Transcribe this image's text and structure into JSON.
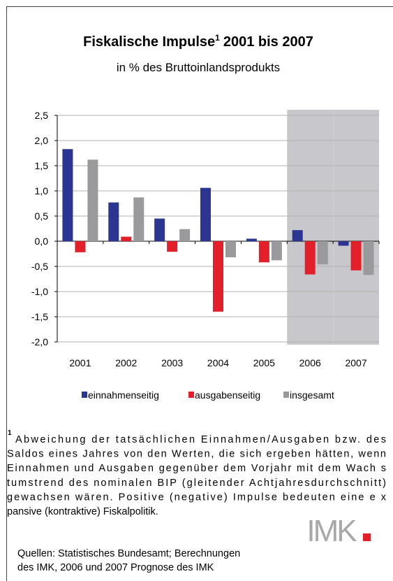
{
  "chart_data": {
    "type": "bar",
    "title": "Fiskalische Impulse",
    "title_footnote_mark": "1",
    "title_suffix": "2001 bis 2007",
    "subtitle": "in % des Bruttoinlandsprodukts",
    "categories": [
      "2001",
      "2002",
      "2003",
      "2004",
      "2005",
      "2006",
      "2007"
    ],
    "shaded": [
      false,
      false,
      false,
      false,
      false,
      true,
      true
    ],
    "series": [
      {
        "name": "einnahmenseitig",
        "color": "#2b3592",
        "values": [
          1.83,
          0.77,
          0.45,
          1.06,
          0.05,
          0.22,
          -0.09
        ]
      },
      {
        "name": "ausgabenseitig",
        "color": "#e3202a",
        "values": [
          -0.22,
          0.09,
          -0.21,
          -1.4,
          -0.42,
          -0.66,
          -0.58
        ]
      },
      {
        "name": "insgesamt",
        "color": "#9a9a9c",
        "values": [
          1.62,
          0.87,
          0.24,
          -0.32,
          -0.38,
          -0.46,
          -0.67
        ]
      }
    ],
    "ylim": [
      -2.0,
      2.5
    ],
    "yticks": [
      {
        "value": 2.5,
        "label": "2,5"
      },
      {
        "value": 2.0,
        "label": "2,0"
      },
      {
        "value": 1.5,
        "label": "1,5"
      },
      {
        "value": 1.0,
        "label": "1,0"
      },
      {
        "value": 0.5,
        "label": "0,5"
      },
      {
        "value": 0.0,
        "label": "0,0"
      },
      {
        "value": -0.5,
        "label": "-0,5"
      },
      {
        "value": -1.0,
        "label": "-1,0"
      },
      {
        "value": -1.5,
        "label": "-1,5"
      },
      {
        "value": -2.0,
        "label": "-2,0"
      }
    ],
    "grid": true,
    "legend": "bottom"
  },
  "footnote": {
    "mark": "1",
    "lines": [
      "Abweichung der tatsächlichen Einnahmen/Ausgaben bzw. des",
      "Saldos eines Jahres von den Werten, die sich ergeben hätten, wenn",
      "Einnahmen und Ausgaben gegenüber dem Vorjahr mit dem Wach s",
      "tumstrend des nominalen BIP (gleitender Achtjahresdurchschnitt)",
      "gewachsen wären. Positive (negative) Impulse bedeuten eine e x",
      "pansive (kontraktive) Fiskalpolitik."
    ]
  },
  "source": {
    "lines": [
      "Quellen: Statistisches Bundesamt; Berechnungen",
      "des IMK, 2006 und 2007 Prognose des IMK"
    ]
  },
  "logo": {
    "text": "IMK"
  }
}
